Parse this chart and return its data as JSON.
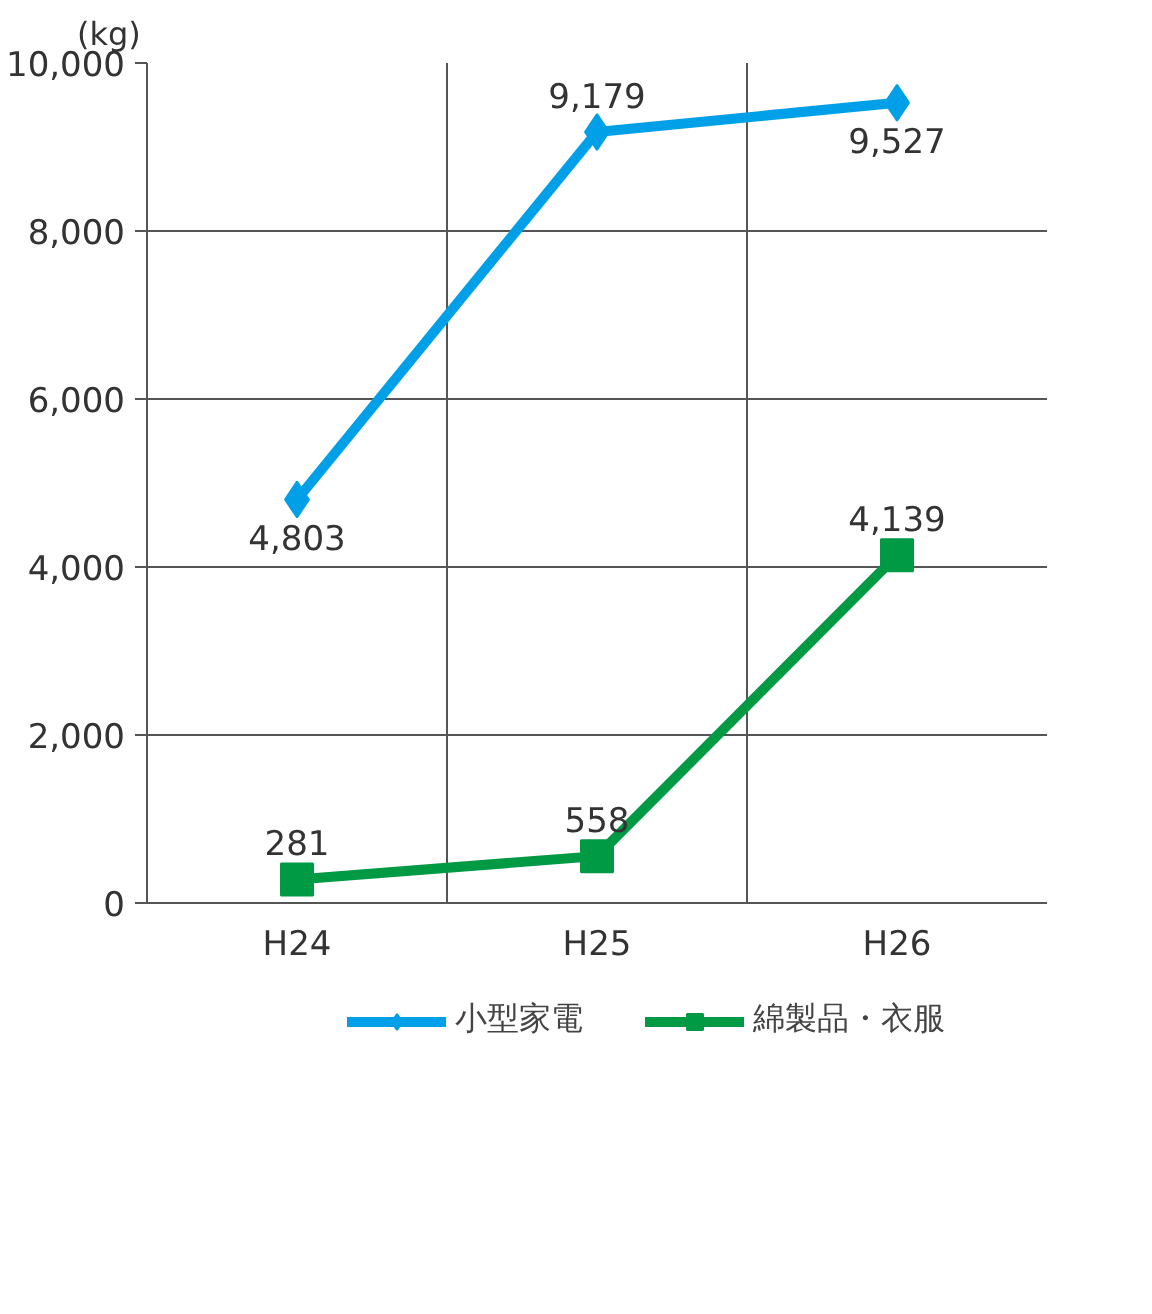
{
  "chart_data": {
    "type": "line",
    "ylabel": "(kg)",
    "categories": [
      "H24",
      "H25",
      "H26"
    ],
    "series": [
      {
        "name": "小型家電",
        "color": "#00a0e9",
        "marker": "diamond",
        "values": [
          4803,
          9179,
          9527
        ],
        "value_labels": [
          "4,803",
          "9,179",
          "9,527"
        ]
      },
      {
        "name": "綿製品・衣服",
        "color": "#009944",
        "marker": "square",
        "values": [
          281,
          558,
          4139
        ],
        "value_labels": [
          "281",
          "558",
          "4,139"
        ]
      }
    ],
    "ylim": [
      0,
      10000
    ],
    "yticks": [
      {
        "value": 0,
        "label": "0"
      },
      {
        "value": 2000,
        "label": "2,000"
      },
      {
        "value": 4000,
        "label": "4,000"
      },
      {
        "value": 6000,
        "label": "6,000"
      },
      {
        "value": 8000,
        "label": "8,000"
      },
      {
        "value": 10000,
        "label": "10,000"
      }
    ],
    "grid": true,
    "legend": "bottom",
    "line_style": "solid"
  }
}
